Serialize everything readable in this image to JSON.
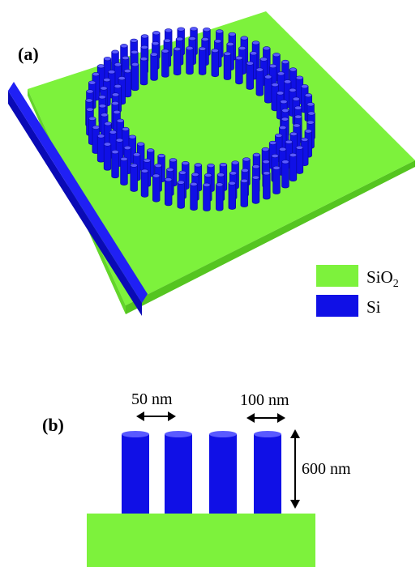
{
  "panels": {
    "a_label": "(a)",
    "b_label": "(b)"
  },
  "legend": [
    {
      "name": "sio2",
      "label": "SiO",
      "subscript": "2",
      "color": "#7df23c"
    },
    {
      "name": "si",
      "label": "Si",
      "subscript": "",
      "color": "#1010e6"
    }
  ],
  "dimensions": {
    "gap": "50 nm",
    "diameter": "100 nm",
    "height": "600 nm"
  },
  "colors": {
    "substrate": "#7df23c",
    "substrate_dark": "#52c21f",
    "silicon": "#1010e6",
    "silicon_dark": "#0909a8",
    "silicon_top": "#5a5aff"
  }
}
